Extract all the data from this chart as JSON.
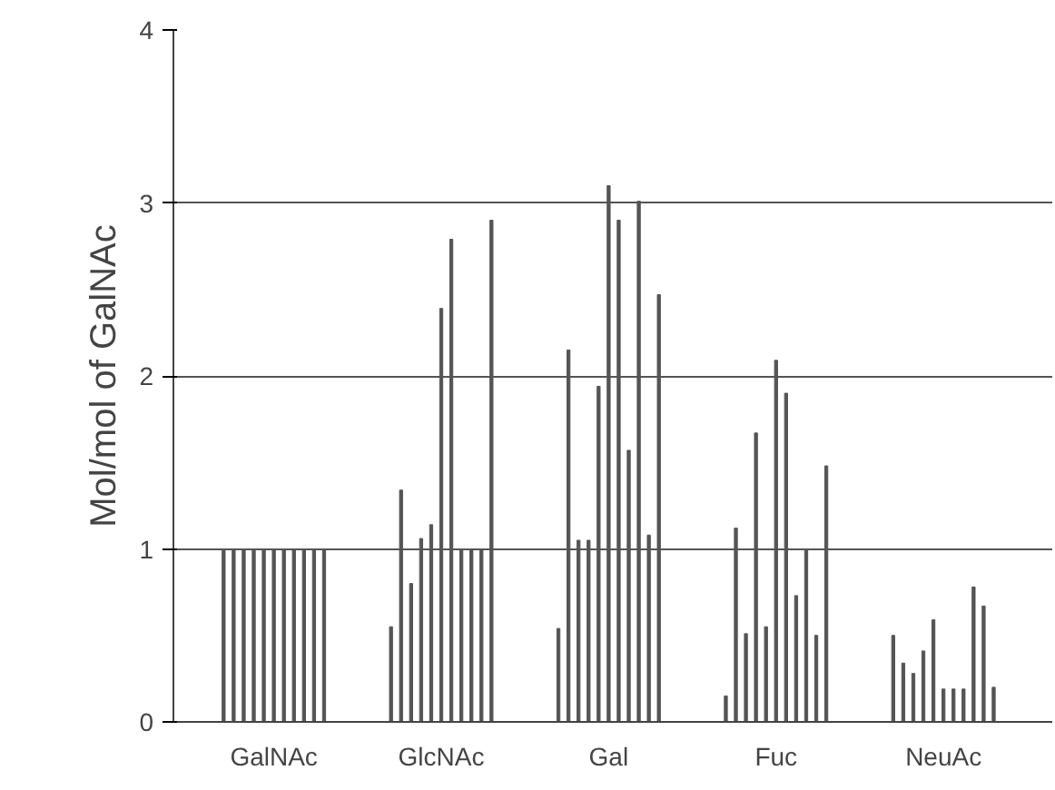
{
  "chart_data": {
    "type": "bar",
    "ylabel": "Mol/mol of GalNAc",
    "categories": [
      "GalNAc",
      "GlcNAc",
      "Gal",
      "Fuc",
      "NeuAc"
    ],
    "series": [
      {
        "color": "#555555",
        "values": [
          1,
          0.55,
          0.54,
          0.15,
          0.5
        ]
      },
      {
        "color": "#555555",
        "values": [
          1,
          1.34,
          2.15,
          1.12,
          0.34
        ]
      },
      {
        "color": "#555555",
        "values": [
          1,
          0.8,
          1.05,
          0.51,
          0.28
        ]
      },
      {
        "color": "#555555",
        "values": [
          1,
          1.06,
          1.05,
          1.67,
          0.41
        ]
      },
      {
        "color": "#555555",
        "values": [
          1,
          1.14,
          1.94,
          0.55,
          0.59
        ]
      },
      {
        "color": "#555555",
        "values": [
          1,
          2.39,
          3.1,
          2.09,
          0.19
        ]
      },
      {
        "color": "#555555",
        "values": [
          1,
          2.79,
          2.9,
          1.9,
          0.19
        ]
      },
      {
        "color": "#555555",
        "values": [
          1,
          1,
          1.57,
          0.73,
          0.19
        ]
      },
      {
        "color": "#555555",
        "values": [
          1,
          1,
          3.01,
          1.0,
          0.78
        ]
      },
      {
        "color": "#555555",
        "values": [
          1,
          1,
          1.08,
          0.5,
          0.67
        ]
      },
      {
        "color": "#555555",
        "values": [
          1,
          2.9,
          2.47,
          1.48,
          0.2
        ]
      }
    ],
    "ylim": [
      0,
      4
    ],
    "yticks": [
      0,
      1,
      2,
      3,
      4
    ],
    "grid": "y"
  }
}
